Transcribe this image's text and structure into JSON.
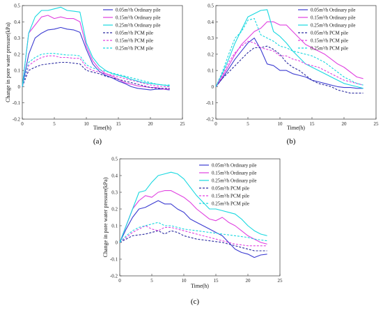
{
  "chart_data": [
    {
      "type": "line",
      "panel_label": "(a)",
      "xlabel": "Time(h)",
      "ylabel": "Change in pore water pressure(kPa)",
      "xlim": [
        0,
        25
      ],
      "ylim": [
        -0.2,
        0.5
      ],
      "xticks": [
        "0",
        "5",
        "10",
        "15",
        "20",
        "25"
      ],
      "yticks": [
        "-0.2",
        "-0.1",
        "0",
        "0.1",
        "0.2",
        "0.3",
        "0.4",
        "0.5"
      ],
      "legend_position": "top-right",
      "series": [
        {
          "name": "0.05m³/h Ordinary pile",
          "color": "#3b3bd1",
          "dash": false,
          "x": [
            0,
            1,
            2,
            3,
            4,
            5,
            6,
            7,
            8,
            9,
            10,
            11,
            12,
            13,
            14,
            15,
            16,
            17,
            18,
            19,
            20,
            21,
            22,
            23
          ],
          "values": [
            0,
            0.2,
            0.3,
            0.33,
            0.35,
            0.355,
            0.365,
            0.355,
            0.35,
            0.335,
            0.23,
            0.14,
            0.095,
            0.07,
            0.055,
            0.035,
            0.02,
            0.0,
            -0.01,
            -0.015,
            -0.02,
            -0.015,
            -0.015,
            -0.02
          ]
        },
        {
          "name": "0.15m³/h Ordinary pile",
          "color": "#e040e0",
          "dash": false,
          "x": [
            0,
            1,
            2,
            3,
            4,
            5,
            6,
            7,
            8,
            9,
            10,
            11,
            12,
            13,
            14,
            15,
            16,
            17,
            18,
            19,
            20,
            21,
            22,
            23
          ],
          "values": [
            0,
            0.33,
            0.38,
            0.43,
            0.44,
            0.42,
            0.43,
            0.42,
            0.42,
            0.4,
            0.25,
            0.16,
            0.11,
            0.08,
            0.065,
            0.045,
            0.025,
            0.015,
            0.005,
            0.0,
            -0.005,
            -0.005,
            -0.015,
            -0.015
          ]
        },
        {
          "name": "0.25m³/h Ordinary pile",
          "color": "#18d8e0",
          "dash": false,
          "x": [
            0,
            1,
            2,
            3,
            4,
            5,
            6,
            7,
            8,
            9,
            10,
            11,
            12,
            13,
            14,
            15,
            16,
            17,
            18,
            19,
            20,
            21,
            22,
            23
          ],
          "values": [
            0,
            0.33,
            0.43,
            0.47,
            0.47,
            0.48,
            0.49,
            0.47,
            0.465,
            0.46,
            0.27,
            0.18,
            0.13,
            0.1,
            0.08,
            0.07,
            0.06,
            0.045,
            0.035,
            0.025,
            0.02,
            0.015,
            0.01,
            0.005
          ]
        },
        {
          "name": "0.05m³/h PCM pile",
          "color": "#2a2aa0",
          "dash": true,
          "x": [
            0,
            1,
            2,
            3,
            4,
            5,
            6,
            7,
            8,
            9,
            10,
            11,
            12,
            13,
            14,
            15,
            16,
            17,
            18,
            19,
            20,
            21,
            22,
            23
          ],
          "values": [
            0,
            0.1,
            0.12,
            0.135,
            0.14,
            0.145,
            0.15,
            0.15,
            0.145,
            0.14,
            0.1,
            0.09,
            0.08,
            0.065,
            0.055,
            0.045,
            0.035,
            0.025,
            0.015,
            0.005,
            -0.005,
            -0.01,
            -0.01,
            -0.01
          ]
        },
        {
          "name": "0.15m³/h PCM pile",
          "color": "#e040e0",
          "dash": true,
          "x": [
            0,
            1,
            2,
            3,
            4,
            5,
            6,
            7,
            8,
            9,
            10,
            11,
            12,
            13,
            14,
            15,
            16,
            17,
            18,
            19,
            20,
            21,
            22,
            23
          ],
          "values": [
            0,
            0.13,
            0.16,
            0.18,
            0.19,
            0.19,
            0.18,
            0.18,
            0.175,
            0.175,
            0.12,
            0.1,
            0.09,
            0.08,
            0.07,
            0.06,
            0.05,
            0.04,
            0.03,
            0.02,
            0.01,
            0.005,
            0.0,
            0.0
          ]
        },
        {
          "name": "0.25m³/h PCM pile",
          "color": "#18d8e0",
          "dash": true,
          "x": [
            0,
            1,
            2,
            3,
            4,
            5,
            6,
            7,
            8,
            9,
            10,
            11,
            12,
            13,
            14,
            15,
            16,
            17,
            18,
            19,
            20,
            21,
            22,
            23
          ],
          "values": [
            0,
            0.15,
            0.18,
            0.2,
            0.205,
            0.205,
            0.2,
            0.195,
            0.195,
            0.19,
            0.135,
            0.115,
            0.105,
            0.095,
            0.085,
            0.075,
            0.065,
            0.055,
            0.045,
            0.035,
            0.025,
            0.015,
            0.01,
            0.01
          ]
        }
      ]
    },
    {
      "type": "line",
      "panel_label": "(b)",
      "xlabel": "Time(h)",
      "ylabel": "",
      "xlim": [
        0,
        25
      ],
      "ylim": [
        -0.2,
        0.5
      ],
      "xticks": [
        "0",
        "5",
        "10",
        "15",
        "20",
        "25"
      ],
      "yticks": [
        "-0.2",
        "-0.1",
        "0",
        "0.1",
        "0.2",
        "0.3",
        "0.4",
        "0.5"
      ],
      "legend_position": "top-right",
      "series": [
        {
          "name": "0.05m³/h Ordinary pile",
          "color": "#3b3bd1",
          "dash": false,
          "x": [
            0,
            1,
            2,
            3,
            4,
            5,
            6,
            7,
            8,
            9,
            10,
            11,
            12,
            13,
            14,
            15,
            16,
            17,
            18,
            19,
            20,
            21,
            22,
            23
          ],
          "values": [
            0,
            0.05,
            0.11,
            0.17,
            0.22,
            0.27,
            0.3,
            0.23,
            0.14,
            0.13,
            0.1,
            0.1,
            0.08,
            0.07,
            0.06,
            0.04,
            0.03,
            0.02,
            0.01,
            0.0,
            -0.005,
            -0.005,
            -0.01,
            -0.01
          ]
        },
        {
          "name": "0.15m³/h Ordinary pile",
          "color": "#e040e0",
          "dash": false,
          "x": [
            0,
            1,
            2,
            3,
            4,
            5,
            6,
            7,
            8,
            9,
            10,
            11,
            12,
            13,
            14,
            15,
            16,
            17,
            18,
            19,
            20,
            21,
            22,
            23
          ],
          "values": [
            0,
            0.06,
            0.13,
            0.2,
            0.26,
            0.3,
            0.34,
            0.36,
            0.4,
            0.4,
            0.38,
            0.38,
            0.34,
            0.3,
            0.26,
            0.24,
            0.22,
            0.2,
            0.17,
            0.14,
            0.12,
            0.09,
            0.06,
            0.05
          ]
        },
        {
          "name": "0.25m³/h Ordinary pile",
          "color": "#18d8e0",
          "dash": false,
          "x": [
            0,
            1,
            2,
            3,
            4,
            5,
            6,
            7,
            8,
            9,
            10,
            11,
            12,
            13,
            14,
            15,
            16,
            17,
            18,
            19,
            20,
            21,
            22,
            23
          ],
          "values": [
            0,
            0.08,
            0.17,
            0.27,
            0.35,
            0.43,
            0.45,
            0.47,
            0.475,
            0.34,
            0.31,
            0.27,
            0.22,
            0.18,
            0.14,
            0.12,
            0.1,
            0.08,
            0.06,
            0.04,
            0.02,
            0.01,
            0.0,
            -0.01
          ]
        },
        {
          "name": "0.05m³/h PCM pile",
          "color": "#2a2aa0",
          "dash": true,
          "x": [
            0,
            1,
            2,
            3,
            4,
            5,
            6,
            7,
            8,
            9,
            10,
            11,
            12,
            13,
            14,
            15,
            16,
            17,
            18,
            19,
            20,
            21,
            22,
            23
          ],
          "values": [
            0,
            0.05,
            0.09,
            0.13,
            0.17,
            0.21,
            0.24,
            0.24,
            0.25,
            0.23,
            0.2,
            0.15,
            0.12,
            0.1,
            0.07,
            0.04,
            0.02,
            0.01,
            0.0,
            -0.02,
            -0.03,
            -0.04,
            -0.04,
            -0.04
          ]
        },
        {
          "name": "0.15m³/h PCM pile",
          "color": "#e040e0",
          "dash": true,
          "x": [
            0,
            1,
            2,
            3,
            4,
            5,
            6,
            7,
            8,
            9,
            10,
            11,
            12,
            13,
            14,
            15,
            16,
            17,
            18,
            19,
            20,
            21,
            22,
            23
          ],
          "values": [
            0,
            0.07,
            0.15,
            0.21,
            0.25,
            0.28,
            0.27,
            0.24,
            0.23,
            0.22,
            0.19,
            0.19,
            0.17,
            0.16,
            0.14,
            0.13,
            0.12,
            0.1,
            0.08,
            0.06,
            0.04,
            0.03,
            0.02,
            0.01
          ]
        },
        {
          "name": "0.25m³/h PCM pile",
          "color": "#18d8e0",
          "dash": true,
          "x": [
            0,
            1,
            2,
            3,
            4,
            5,
            6,
            7,
            8,
            9,
            10,
            11,
            12,
            13,
            14,
            15,
            16,
            17,
            18,
            19,
            20,
            21,
            22,
            23
          ],
          "values": [
            0,
            0.09,
            0.2,
            0.3,
            0.34,
            0.41,
            0.42,
            0.32,
            0.3,
            0.28,
            0.25,
            0.24,
            0.22,
            0.21,
            0.2,
            0.19,
            0.17,
            0.15,
            0.12,
            0.09,
            0.06,
            0.04,
            0.02,
            0.01
          ]
        }
      ]
    },
    {
      "type": "line",
      "panel_label": "(c)",
      "xlabel": "Time(h)",
      "ylabel": "Change in pore water pressure(kPa)",
      "xlim": [
        0,
        25
      ],
      "ylim": [
        -0.2,
        0.5
      ],
      "xticks": [
        "0",
        "5",
        "10",
        "15",
        "20",
        "25"
      ],
      "yticks": [
        "-0.2",
        "-0.1",
        "0",
        "0.1",
        "0.2",
        "0.3",
        "0.4",
        "0.5"
      ],
      "legend_position": "top-right",
      "series": [
        {
          "name": "0.05m³/h Ordinary pile",
          "color": "#3b3bd1",
          "dash": false,
          "x": [
            0,
            1,
            2,
            3,
            4,
            5,
            6,
            7,
            8,
            9,
            10,
            11,
            12,
            13,
            14,
            15,
            16,
            17,
            18,
            19,
            20,
            21,
            22,
            23
          ],
          "values": [
            0,
            0.08,
            0.15,
            0.2,
            0.21,
            0.23,
            0.25,
            0.23,
            0.23,
            0.2,
            0.18,
            0.14,
            0.12,
            0.1,
            0.08,
            0.06,
            0.04,
            0.0,
            -0.04,
            -0.06,
            -0.07,
            -0.09,
            -0.075,
            -0.07
          ]
        },
        {
          "name": "0.15m³/h Ordinary pile",
          "color": "#e040e0",
          "dash": false,
          "x": [
            0,
            1,
            2,
            3,
            4,
            5,
            6,
            7,
            8,
            9,
            10,
            11,
            12,
            13,
            14,
            15,
            16,
            17,
            18,
            19,
            20,
            21,
            22,
            23
          ],
          "values": [
            0,
            0.1,
            0.2,
            0.25,
            0.28,
            0.27,
            0.3,
            0.31,
            0.31,
            0.29,
            0.27,
            0.24,
            0.2,
            0.17,
            0.14,
            0.13,
            0.15,
            0.12,
            0.1,
            0.07,
            0.04,
            0.02,
            0.0,
            -0.01
          ]
        },
        {
          "name": "0.25m³/h Ordinary pile",
          "color": "#18d8e0",
          "dash": false,
          "x": [
            0,
            1,
            2,
            3,
            4,
            5,
            6,
            7,
            8,
            9,
            10,
            11,
            12,
            13,
            14,
            15,
            16,
            17,
            18,
            19,
            20,
            21,
            22,
            23
          ],
          "values": [
            0,
            0.1,
            0.2,
            0.3,
            0.31,
            0.36,
            0.4,
            0.41,
            0.42,
            0.41,
            0.38,
            0.33,
            0.28,
            0.24,
            0.2,
            0.2,
            0.19,
            0.18,
            0.17,
            0.14,
            0.1,
            0.07,
            0.05,
            0.04
          ]
        },
        {
          "name": "0.05m³/h PCM pile",
          "color": "#2a2aa0",
          "dash": true,
          "x": [
            0,
            1,
            2,
            3,
            4,
            5,
            6,
            7,
            8,
            9,
            10,
            11,
            12,
            13,
            14,
            15,
            16,
            17,
            18,
            19,
            20,
            21,
            22,
            23
          ],
          "values": [
            0,
            0.02,
            0.04,
            0.045,
            0.05,
            0.06,
            0.07,
            0.05,
            0.07,
            0.06,
            0.04,
            0.03,
            0.02,
            0.015,
            0.01,
            0.005,
            0.0,
            -0.01,
            -0.02,
            -0.03,
            -0.04,
            -0.05,
            -0.05,
            -0.05
          ]
        },
        {
          "name": "0.15m³/h PCM pile",
          "color": "#e040e0",
          "dash": true,
          "x": [
            0,
            1,
            2,
            3,
            4,
            5,
            6,
            7,
            8,
            9,
            10,
            11,
            12,
            13,
            14,
            15,
            16,
            17,
            18,
            19,
            20,
            21,
            22,
            23
          ],
          "values": [
            0,
            0.03,
            0.06,
            0.08,
            0.1,
            0.08,
            0.07,
            0.09,
            0.09,
            0.08,
            0.07,
            0.06,
            0.05,
            0.04,
            0.03,
            0.02,
            0.01,
            0.0,
            -0.01,
            -0.015,
            -0.02,
            -0.02,
            -0.02,
            -0.02
          ]
        },
        {
          "name": "0.25m³/h PCM pile",
          "color": "#18d8e0",
          "dash": true,
          "x": [
            0,
            1,
            2,
            3,
            4,
            5,
            6,
            7,
            8,
            9,
            10,
            11,
            12,
            13,
            14,
            15,
            16,
            17,
            18,
            19,
            20,
            21,
            22,
            23
          ],
          "values": [
            0,
            0.04,
            0.07,
            0.09,
            0.1,
            0.11,
            0.12,
            0.1,
            0.1,
            0.09,
            0.08,
            0.075,
            0.07,
            0.065,
            0.06,
            0.055,
            0.05,
            0.045,
            0.04,
            0.035,
            0.03,
            0.02,
            0.015,
            0.01
          ]
        }
      ]
    }
  ]
}
